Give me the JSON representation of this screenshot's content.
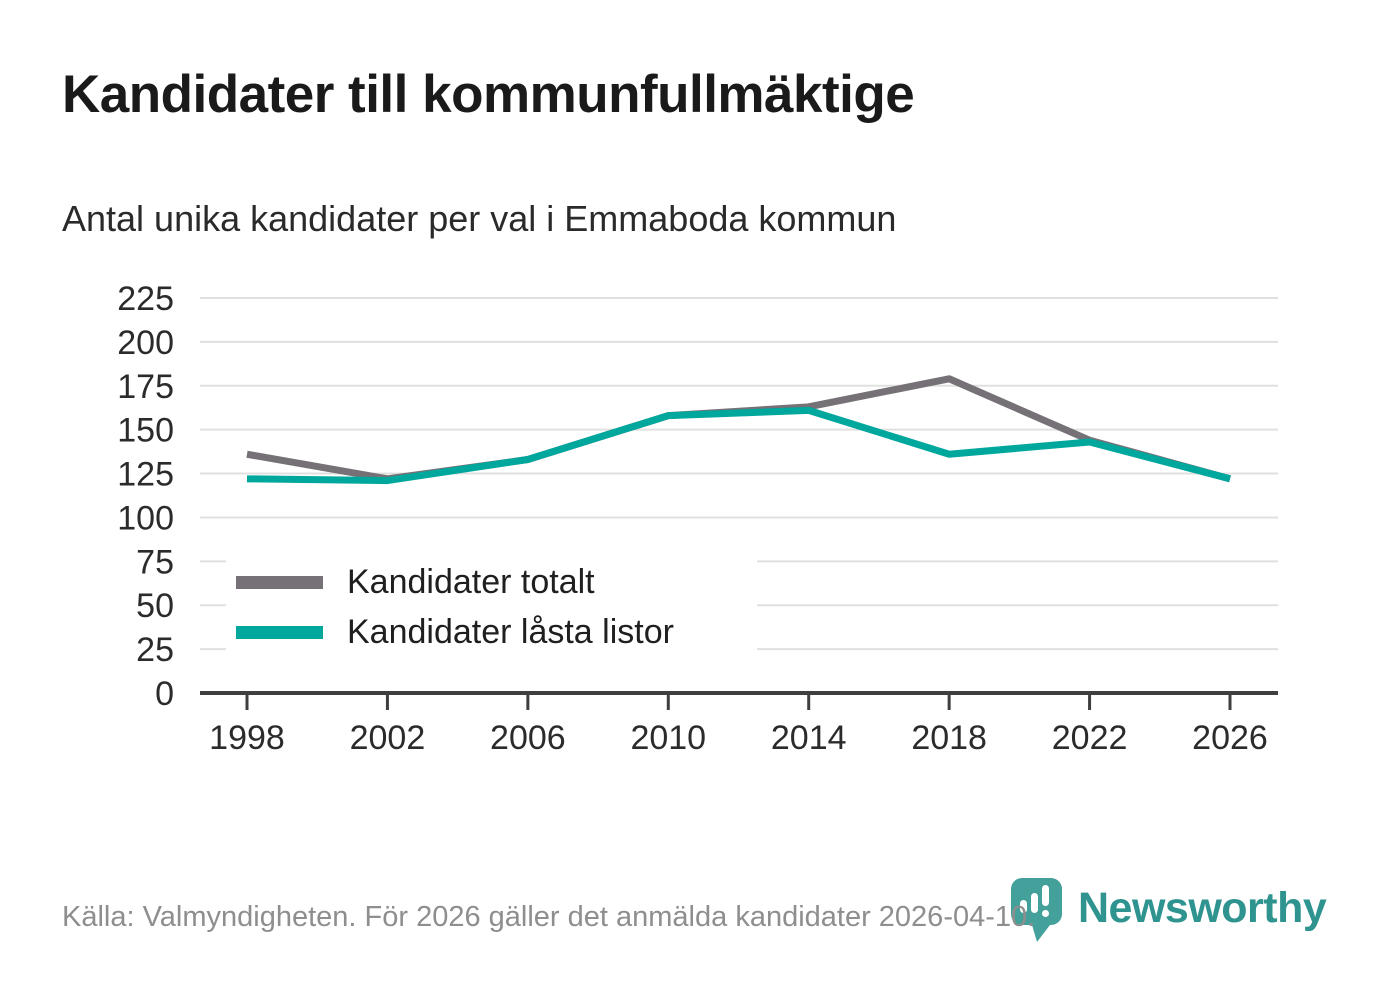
{
  "header": {
    "title": "Kandidater till kommunfullmäktige",
    "subtitle": "Antal unika kandidater per val i Emmaboda kommun"
  },
  "chart_data": {
    "type": "line",
    "title": "Kandidater till kommunfullmäktige",
    "subtitle": "Antal unika kandidater per val i Emmaboda kommun",
    "x": [
      1998,
      2002,
      2006,
      2010,
      2014,
      2018,
      2022,
      2026
    ],
    "series": [
      {
        "name": "Kandidater totalt",
        "color": "#757176",
        "values": [
          136,
          122,
          133,
          158,
          163,
          179,
          144,
          122
        ]
      },
      {
        "name": "Kandidater låsta listor",
        "color": "#00a79c",
        "values": [
          122,
          121,
          133,
          158,
          161,
          136,
          143,
          122
        ]
      }
    ],
    "ylim": [
      0,
      225
    ],
    "ytick_step": 25,
    "grid": "horizontal",
    "grid_color": "#e0e0e0",
    "axis_color": "#3f3f3f",
    "tick_color": "#2b2b2b",
    "line_width": 7,
    "legend_position": "inside-lower-left"
  },
  "legend": {
    "items": [
      {
        "label": "Kandidater totalt",
        "swatch": "gray-line-swatch"
      },
      {
        "label": "Kandidater låsta listor",
        "swatch": "teal-line-swatch"
      }
    ]
  },
  "footer": {
    "source_text": "Källa: Valmyndigheten. För 2026 gäller det anmälda kandidater 2026-04-10.",
    "brand_name": "Newsworthy",
    "brand_color": "#2f948f",
    "logo_icon": "newsworthy-pin-barchart-icon",
    "logo_color": "#44a09b"
  }
}
